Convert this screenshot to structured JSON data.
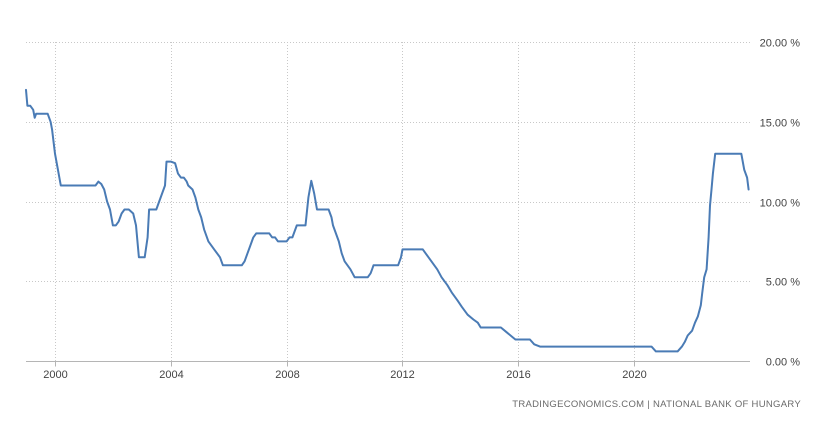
{
  "source": "TRADINGECONOMICS.COM | NATIONAL BANK OF HUNGARY",
  "chart_data": {
    "type": "line",
    "title": "",
    "xlabel": "",
    "ylabel": "",
    "xlim": [
      1999.0,
      2024.0
    ],
    "ylim": [
      0,
      20
    ],
    "grid": true,
    "legend": "none",
    "y_ticks": [
      {
        "value": 0,
        "label": "0.00 %"
      },
      {
        "value": 5,
        "label": "5.00 %"
      },
      {
        "value": 10,
        "label": "10.00 %"
      },
      {
        "value": 15,
        "label": "15.00 %"
      },
      {
        "value": 20,
        "label": "20.00 %"
      }
    ],
    "x_ticks": [
      {
        "value": 2000,
        "label": "2000"
      },
      {
        "value": 2004,
        "label": "2004"
      },
      {
        "value": 2008,
        "label": "2008"
      },
      {
        "value": 2012,
        "label": "2012"
      },
      {
        "value": 2016,
        "label": "2016"
      },
      {
        "value": 2020,
        "label": "2020"
      }
    ],
    "series": [
      {
        "color": "#4a7bb5",
        "points": [
          [
            1999.0,
            17.0
          ],
          [
            1999.05,
            16.0
          ],
          [
            1999.15,
            16.0
          ],
          [
            1999.25,
            15.75
          ],
          [
            1999.3,
            15.25
          ],
          [
            1999.35,
            15.5
          ],
          [
            1999.6,
            15.5
          ],
          [
            1999.75,
            15.5
          ],
          [
            1999.85,
            15.0
          ],
          [
            1999.9,
            14.5
          ],
          [
            2000.0,
            13.0
          ],
          [
            2000.1,
            12.0
          ],
          [
            2000.2,
            11.0
          ],
          [
            2001.0,
            11.0
          ],
          [
            2001.4,
            11.0
          ],
          [
            2001.5,
            11.25
          ],
          [
            2001.6,
            11.1
          ],
          [
            2001.7,
            10.75
          ],
          [
            2001.8,
            10.0
          ],
          [
            2001.9,
            9.5
          ],
          [
            2002.0,
            8.5
          ],
          [
            2002.1,
            8.5
          ],
          [
            2002.2,
            8.75
          ],
          [
            2002.3,
            9.25
          ],
          [
            2002.4,
            9.5
          ],
          [
            2002.55,
            9.5
          ],
          [
            2002.7,
            9.25
          ],
          [
            2002.8,
            8.5
          ],
          [
            2002.9,
            6.5
          ],
          [
            2003.1,
            6.5
          ],
          [
            2003.2,
            7.75
          ],
          [
            2003.25,
            9.5
          ],
          [
            2003.5,
            9.5
          ],
          [
            2003.8,
            11.0
          ],
          [
            2003.85,
            12.5
          ],
          [
            2004.0,
            12.5
          ],
          [
            2004.15,
            12.4
          ],
          [
            2004.25,
            11.75
          ],
          [
            2004.35,
            11.5
          ],
          [
            2004.45,
            11.5
          ],
          [
            2004.55,
            11.25
          ],
          [
            2004.6,
            11.0
          ],
          [
            2004.75,
            10.75
          ],
          [
            2004.85,
            10.25
          ],
          [
            2004.95,
            9.5
          ],
          [
            2005.05,
            9.0
          ],
          [
            2005.15,
            8.25
          ],
          [
            2005.3,
            7.5
          ],
          [
            2005.5,
            7.0
          ],
          [
            2005.7,
            6.5
          ],
          [
            2005.8,
            6.0
          ],
          [
            2006.3,
            6.0
          ],
          [
            2006.45,
            6.0
          ],
          [
            2006.55,
            6.25
          ],
          [
            2006.65,
            6.75
          ],
          [
            2006.75,
            7.25
          ],
          [
            2006.85,
            7.75
          ],
          [
            2006.95,
            8.0
          ],
          [
            2007.4,
            8.0
          ],
          [
            2007.5,
            7.75
          ],
          [
            2007.6,
            7.75
          ],
          [
            2007.7,
            7.5
          ],
          [
            2008.0,
            7.5
          ],
          [
            2008.1,
            7.75
          ],
          [
            2008.2,
            7.75
          ],
          [
            2008.35,
            8.5
          ],
          [
            2008.65,
            8.5
          ],
          [
            2008.75,
            10.25
          ],
          [
            2008.85,
            11.3
          ],
          [
            2008.95,
            10.5
          ],
          [
            2009.05,
            9.5
          ],
          [
            2009.45,
            9.5
          ],
          [
            2009.55,
            9.0
          ],
          [
            2009.6,
            8.5
          ],
          [
            2009.7,
            8.0
          ],
          [
            2009.8,
            7.5
          ],
          [
            2009.9,
            6.75
          ],
          [
            2010.0,
            6.25
          ],
          [
            2010.2,
            5.75
          ],
          [
            2010.35,
            5.25
          ],
          [
            2010.8,
            5.25
          ],
          [
            2010.9,
            5.5
          ],
          [
            2010.95,
            5.75
          ],
          [
            2011.0,
            6.0
          ],
          [
            2011.85,
            6.0
          ],
          [
            2011.95,
            6.5
          ],
          [
            2012.0,
            7.0
          ],
          [
            2012.7,
            7.0
          ],
          [
            2012.8,
            6.75
          ],
          [
            2012.9,
            6.5
          ],
          [
            2013.0,
            6.25
          ],
          [
            2013.2,
            5.75
          ],
          [
            2013.35,
            5.25
          ],
          [
            2013.55,
            4.75
          ],
          [
            2013.7,
            4.3
          ],
          [
            2013.9,
            3.8
          ],
          [
            2014.05,
            3.4
          ],
          [
            2014.25,
            2.9
          ],
          [
            2014.45,
            2.6
          ],
          [
            2014.6,
            2.4
          ],
          [
            2014.7,
            2.1
          ],
          [
            2015.0,
            2.1
          ],
          [
            2015.4,
            2.1
          ],
          [
            2015.6,
            1.8
          ],
          [
            2015.8,
            1.5
          ],
          [
            2015.9,
            1.35
          ],
          [
            2016.4,
            1.35
          ],
          [
            2016.55,
            1.05
          ],
          [
            2016.75,
            0.9
          ],
          [
            2020.0,
            0.9
          ],
          [
            2020.6,
            0.9
          ],
          [
            2020.75,
            0.6
          ],
          [
            2021.5,
            0.6
          ],
          [
            2021.65,
            0.9
          ],
          [
            2021.75,
            1.2
          ],
          [
            2021.85,
            1.6
          ],
          [
            2022.0,
            1.9
          ],
          [
            2022.1,
            2.4
          ],
          [
            2022.2,
            2.8
          ],
          [
            2022.3,
            3.5
          ],
          [
            2022.35,
            4.25
          ],
          [
            2022.42,
            5.25
          ],
          [
            2022.5,
            5.75
          ],
          [
            2022.57,
            7.75
          ],
          [
            2022.62,
            9.75
          ],
          [
            2022.67,
            10.75
          ],
          [
            2022.72,
            11.75
          ],
          [
            2022.8,
            13.0
          ],
          [
            2023.7,
            13.0
          ],
          [
            2023.8,
            12.0
          ],
          [
            2023.9,
            11.5
          ],
          [
            2023.95,
            10.75
          ]
        ]
      }
    ]
  }
}
